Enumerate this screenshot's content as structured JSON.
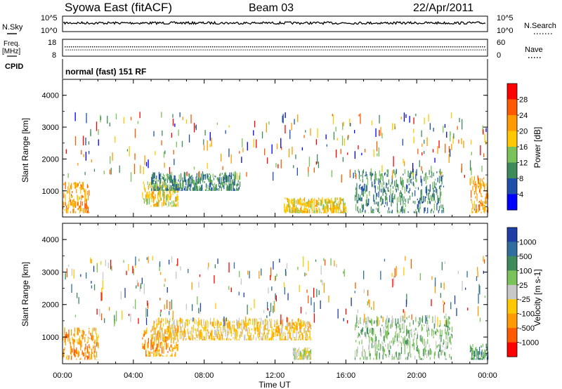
{
  "header": {
    "station": "Syowa East (fitACF)",
    "beam": "Beam 03",
    "date": "22/Apr/2011"
  },
  "strips": {
    "nsky_label": "N.Sky",
    "nsky_ticks": [
      "10^5",
      "10^0"
    ],
    "nsearch_label": "N.Search",
    "nsearch_ticks": [
      "10^5",
      "10^0"
    ],
    "freq_label": "Freq.",
    "freq_unit": "[MHz]",
    "freq_ticks": [
      "18",
      "8"
    ],
    "nave_label": "Nave",
    "nave_ticks": [
      "60",
      "0"
    ],
    "cpid_label": "CPID",
    "cpid_value": "normal (fast) 151 RF"
  },
  "chart_data": [
    {
      "type": "heatmap",
      "panel": "power",
      "ylabel": "Slant Range [km]",
      "yticks": [
        "4000",
        "3000",
        "2000",
        "1000"
      ],
      "ylim": [
        180,
        4500
      ],
      "xlim": [
        "00:00",
        "24:00"
      ],
      "colorbar": {
        "label": "Power [dB]",
        "ticks": [
          "28",
          "24",
          "20",
          "16",
          "12",
          "8",
          "4"
        ],
        "colors": [
          "#ff0000",
          "#ff5a00",
          "#ff9a00",
          "#ffc800",
          "#7ac25a",
          "#3d8b5a",
          "#1f4fa8",
          "#0000ff"
        ]
      },
      "echo_regions": [
        {
          "t_start": "00:00",
          "t_end": "01:30",
          "r_start": 300,
          "r_end": 1300,
          "level": "24"
        },
        {
          "t_start": "04:30",
          "t_end": "06:30",
          "r_start": 500,
          "r_end": 1300,
          "level": "20"
        },
        {
          "t_start": "05:00",
          "t_end": "10:00",
          "r_start": 1000,
          "r_end": 1600,
          "level": "12"
        },
        {
          "t_start": "12:30",
          "t_end": "16:00",
          "r_start": 300,
          "r_end": 800,
          "level": "20"
        },
        {
          "t_start": "16:30",
          "t_end": "21:30",
          "r_start": 300,
          "r_end": 1700,
          "level": "12"
        },
        {
          "t_start": "23:00",
          "t_end": "24:00",
          "r_start": 300,
          "r_end": 1500,
          "level": "24"
        }
      ]
    },
    {
      "type": "heatmap",
      "panel": "velocity",
      "ylabel": "Slant Range [km]",
      "yticks": [
        "4000",
        "3000",
        "2000",
        "1000"
      ],
      "ylim": [
        180,
        4500
      ],
      "xlim": [
        "00:00",
        "24:00"
      ],
      "xlabel": "Time UT",
      "xticks": [
        "00:00",
        "04:00",
        "08:00",
        "12:00",
        "16:00",
        "20:00",
        "00:00"
      ],
      "colorbar": {
        "label": "Velocity [m s-1]",
        "ticks": [
          "1000",
          "500",
          "100",
          "25",
          "-25",
          "-100",
          "-500",
          "-1000"
        ],
        "colors": [
          "#1f3fa8",
          "#2f6e9e",
          "#3d8b5a",
          "#7ac25a",
          "#c8c8c8",
          "#ffc800",
          "#ff9a00",
          "#ff5a00",
          "#ff0000"
        ]
      },
      "echo_regions": [
        {
          "t_start": "00:00",
          "t_end": "02:00",
          "r_start": 300,
          "r_end": 1300,
          "level": "-100"
        },
        {
          "t_start": "04:30",
          "t_end": "06:30",
          "r_start": 400,
          "r_end": 1300,
          "level": "-100"
        },
        {
          "t_start": "05:00",
          "t_end": "14:00",
          "r_start": 900,
          "r_end": 1600,
          "level": "-25"
        },
        {
          "t_start": "13:00",
          "t_end": "14:00",
          "r_start": 300,
          "r_end": 700,
          "level": "25"
        },
        {
          "t_start": "16:30",
          "t_end": "22:00",
          "r_start": 300,
          "r_end": 1700,
          "level": "100"
        },
        {
          "t_start": "23:00",
          "t_end": "24:00",
          "r_start": 300,
          "r_end": 800,
          "level": "500"
        }
      ]
    }
  ]
}
